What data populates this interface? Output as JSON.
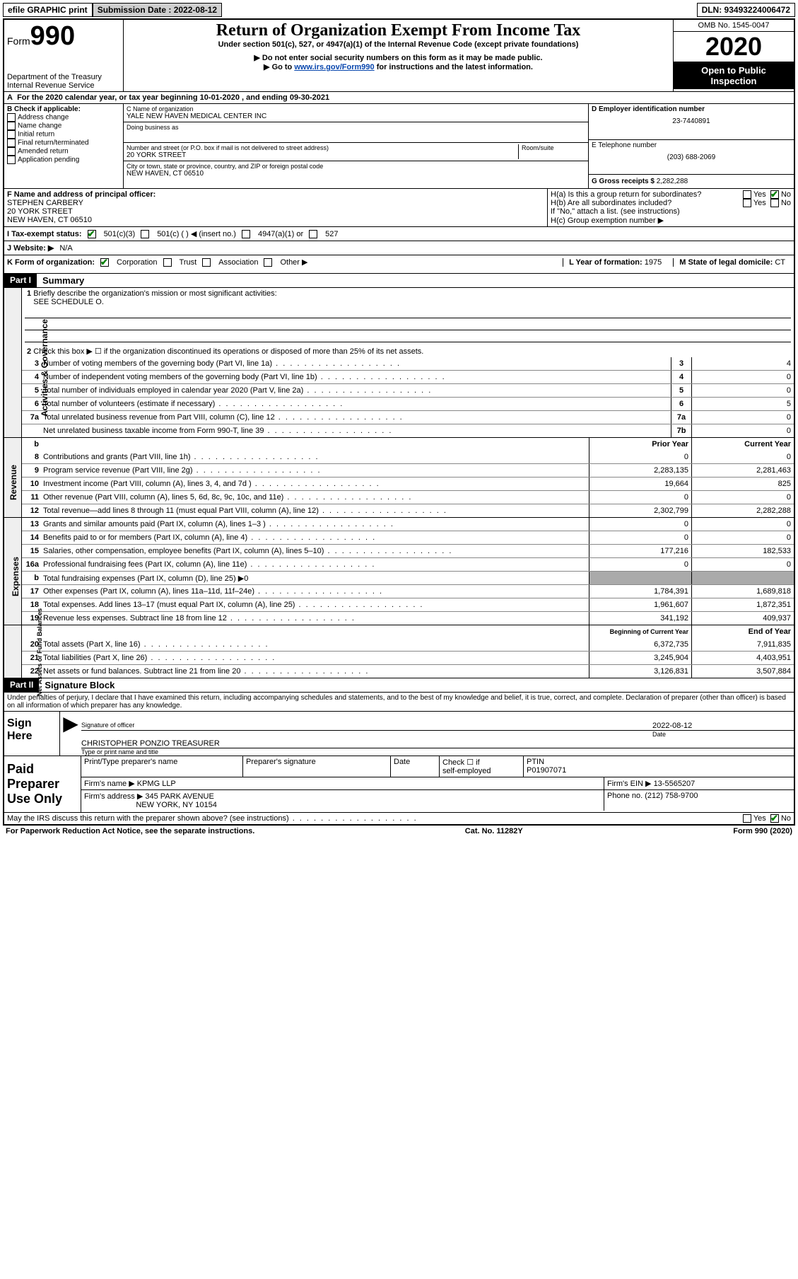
{
  "top": {
    "efile": "efile GRAPHIC print",
    "submission_label": "Submission Date : 2022-08-12",
    "dln": "DLN: 93493224006472"
  },
  "header": {
    "form_label": "Form",
    "form_num": "990",
    "dept1": "Department of the Treasury",
    "dept2": "Internal Revenue Service",
    "title": "Return of Organization Exempt From Income Tax",
    "sub1": "Under section 501(c), 527, or 4947(a)(1) of the Internal Revenue Code (except private foundations)",
    "sub2": "▶ Do not enter social security numbers on this form as it may be made public.",
    "sub3a": "▶ Go to ",
    "sub3_link": "www.irs.gov/Form990",
    "sub3b": " for instructions and the latest information.",
    "omb": "OMB No. 1545-0047",
    "year": "2020",
    "open1": "Open to Public",
    "open2": "Inspection"
  },
  "A": {
    "text": "For the 2020 calendar year, or tax year beginning 10-01-2020    , and ending 09-30-2021"
  },
  "B": {
    "label": "B Check if applicable:",
    "items": [
      "Address change",
      "Name change",
      "Initial return",
      "Final return/terminated",
      "Amended return",
      "Application pending"
    ]
  },
  "C": {
    "name_label": "C Name of organization",
    "name": "YALE NEW HAVEN MEDICAL CENTER INC",
    "dba_label": "Doing business as",
    "addr_label": "Number and street (or P.O. box if mail is not delivered to street address)",
    "room_label": "Room/suite",
    "addr": "20 YORK STREET",
    "city_label": "City or town, state or province, country, and ZIP or foreign postal code",
    "city": "NEW HAVEN, CT  06510"
  },
  "D": {
    "label": "D Employer identification number",
    "value": "23-7440891"
  },
  "E": {
    "label": "E Telephone number",
    "value": "(203) 688-2069"
  },
  "G": {
    "label": "G Gross receipts $",
    "value": "2,282,288"
  },
  "F": {
    "label": "F  Name and address of principal officer:",
    "name": "STEPHEN CARBERY",
    "addr1": "20 YORK STREET",
    "addr2": "NEW HAVEN, CT  06510"
  },
  "H": {
    "ha": "H(a)  Is this a group return for subordinates?",
    "hb": "H(b)  Are all subordinates included?",
    "hb_note": "If \"No,\" attach a list. (see instructions)",
    "hc": "H(c)  Group exemption number ▶",
    "yes": "Yes",
    "no": "No"
  },
  "I": {
    "label": "I    Tax-exempt status:",
    "o1": "501(c)(3)",
    "o2": "501(c) (  ) ◀ (insert no.)",
    "o3": "4947(a)(1) or",
    "o4": "527"
  },
  "J": {
    "label": "J    Website: ▶",
    "value": "N/A"
  },
  "K": {
    "label": "K Form of organization:",
    "o1": "Corporation",
    "o2": "Trust",
    "o3": "Association",
    "o4": "Other ▶"
  },
  "L": {
    "label": "L Year of formation:",
    "value": "1975"
  },
  "M": {
    "label": "M State of legal domicile:",
    "value": "CT"
  },
  "part1": {
    "header": "Part I",
    "title": "Summary",
    "q1": "Briefly describe the organization's mission or most significant activities:",
    "q1_val": "SEE SCHEDULE O.",
    "q2": "Check this box ▶ ☐  if the organization discontinued its operations or disposed of more than 25% of its net assets.",
    "side_gov": "Activities & Governance",
    "side_rev": "Revenue",
    "side_exp": "Expenses",
    "side_net": "Net Assets or Fund Balances",
    "col_prior": "Prior Year",
    "col_curr": "Current Year",
    "col_beg": "Beginning of Current Year",
    "col_end": "End of Year",
    "lines_gov": [
      {
        "n": "3",
        "t": "Number of voting members of the governing body (Part VI, line 1a)",
        "box": "3",
        "v": "4"
      },
      {
        "n": "4",
        "t": "Number of independent voting members of the governing body (Part VI, line 1b)",
        "box": "4",
        "v": "0"
      },
      {
        "n": "5",
        "t": "Total number of individuals employed in calendar year 2020 (Part V, line 2a)",
        "box": "5",
        "v": "0"
      },
      {
        "n": "6",
        "t": "Total number of volunteers (estimate if necessary)",
        "box": "6",
        "v": "5"
      },
      {
        "n": "7a",
        "t": "Total unrelated business revenue from Part VIII, column (C), line 12",
        "box": "7a",
        "v": "0"
      },
      {
        "n": "",
        "t": "Net unrelated business taxable income from Form 990-T, line 39",
        "box": "7b",
        "v": "0"
      }
    ],
    "lines_rev": [
      {
        "n": "8",
        "t": "Contributions and grants (Part VIII, line 1h)",
        "p": "0",
        "c": "0"
      },
      {
        "n": "9",
        "t": "Program service revenue (Part VIII, line 2g)",
        "p": "2,283,135",
        "c": "2,281,463"
      },
      {
        "n": "10",
        "t": "Investment income (Part VIII, column (A), lines 3, 4, and 7d )",
        "p": "19,664",
        "c": "825"
      },
      {
        "n": "11",
        "t": "Other revenue (Part VIII, column (A), lines 5, 6d, 8c, 9c, 10c, and 11e)",
        "p": "0",
        "c": "0"
      },
      {
        "n": "12",
        "t": "Total revenue—add lines 8 through 11 (must equal Part VIII, column (A), line 12)",
        "p": "2,302,799",
        "c": "2,282,288"
      }
    ],
    "lines_exp": [
      {
        "n": "13",
        "t": "Grants and similar amounts paid (Part IX, column (A), lines 1–3 )",
        "p": "0",
        "c": "0"
      },
      {
        "n": "14",
        "t": "Benefits paid to or for members (Part IX, column (A), line 4)",
        "p": "0",
        "c": "0"
      },
      {
        "n": "15",
        "t": "Salaries, other compensation, employee benefits (Part IX, column (A), lines 5–10)",
        "p": "177,216",
        "c": "182,533"
      },
      {
        "n": "16a",
        "t": "Professional fundraising fees (Part IX, column (A), line 11e)",
        "p": "0",
        "c": "0"
      },
      {
        "n": "b",
        "t": "Total fundraising expenses (Part IX, column (D), line 25) ▶0",
        "p": "",
        "c": "",
        "grey": true
      },
      {
        "n": "17",
        "t": "Other expenses (Part IX, column (A), lines 11a–11d, 11f–24e)",
        "p": "1,784,391",
        "c": "1,689,818"
      },
      {
        "n": "18",
        "t": "Total expenses. Add lines 13–17 (must equal Part IX, column (A), line 25)",
        "p": "1,961,607",
        "c": "1,872,351"
      },
      {
        "n": "19",
        "t": "Revenue less expenses. Subtract line 18 from line 12",
        "p": "341,192",
        "c": "409,937"
      }
    ],
    "lines_net": [
      {
        "n": "20",
        "t": "Total assets (Part X, line 16)",
        "p": "6,372,735",
        "c": "7,911,835"
      },
      {
        "n": "21",
        "t": "Total liabilities (Part X, line 26)",
        "p": "3,245,904",
        "c": "4,403,951"
      },
      {
        "n": "22",
        "t": "Net assets or fund balances. Subtract line 21 from line 20",
        "p": "3,126,831",
        "c": "3,507,884"
      }
    ]
  },
  "part2": {
    "header": "Part II",
    "title": "Signature Block",
    "decl": "Under penalties of perjury, I declare that I have examined this return, including accompanying schedules and statements, and to the best of my knowledge and belief, it is true, correct, and complete. Declaration of preparer (other than officer) is based on all information of which preparer has any knowledge."
  },
  "sign": {
    "label": "Sign Here",
    "sig_of": "Signature of officer",
    "date": "2022-08-12",
    "date_label": "Date",
    "name": "CHRISTOPHER PONZIO  TREASURER",
    "name_label": "Type or print name and title"
  },
  "paid": {
    "label": "Paid Preparer Use Only",
    "h1": "Print/Type preparer's name",
    "h2": "Preparer's signature",
    "h3": "Date",
    "h4a": "Check ☐ if",
    "h4b": "self-employed",
    "h5": "PTIN",
    "ptin": "P01907071",
    "firm_label": "Firm's name    ▶",
    "firm": "KPMG LLP",
    "ein_label": "Firm's EIN ▶",
    "ein": "13-5565207",
    "addr_label": "Firm's address ▶",
    "addr1": "345 PARK AVENUE",
    "addr2": "NEW YORK, NY  10154",
    "phone_label": "Phone no.",
    "phone": "(212) 758-9700",
    "discuss": "May the IRS discuss this return with the preparer shown above? (see instructions)"
  },
  "footer": {
    "left": "For Paperwork Reduction Act Notice, see the separate instructions.",
    "mid": "Cat. No. 11282Y",
    "right": "Form 990 (2020)"
  }
}
